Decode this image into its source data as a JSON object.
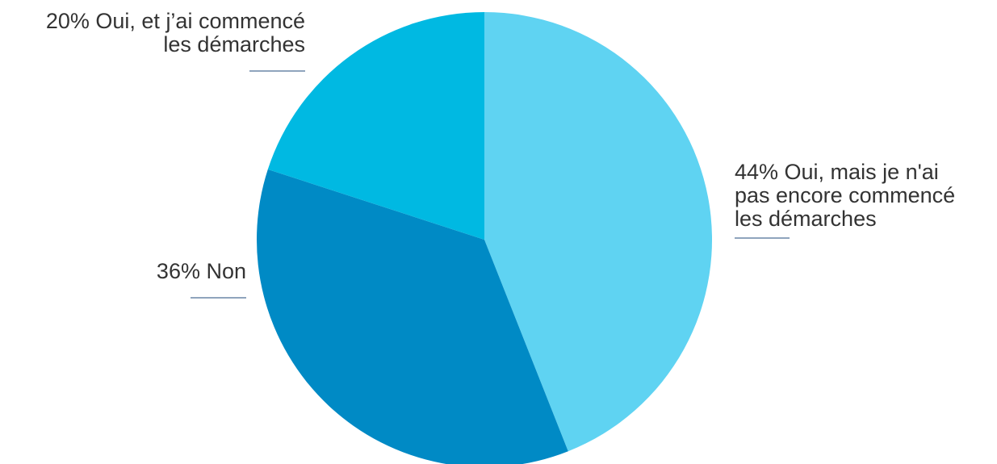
{
  "chart_data": {
    "type": "pie",
    "start_angle_deg": 0,
    "direction": "clockwise",
    "slices": [
      {
        "value": 44,
        "percent_label": "44%",
        "label": "Oui, mais je n'ai pas encore commencé les démarches",
        "label_lines": [
          "44% Oui, mais je n'ai",
          "pas encore commencé",
          "les démarches"
        ],
        "color": "#5fd3f2"
      },
      {
        "value": 36,
        "percent_label": "36%",
        "label": "Non",
        "label_lines": [
          "36% Non"
        ],
        "color": "#008ac5"
      },
      {
        "value": 20,
        "percent_label": "20%",
        "label": "Oui, et j'ai commencé les démarches",
        "label_lines": [
          "20% Oui, et j’ai commencé",
          "les démarches"
        ],
        "color": "#00b9e2"
      }
    ],
    "leader_line_color": "#8fa4bd",
    "label_color": "#333333"
  }
}
